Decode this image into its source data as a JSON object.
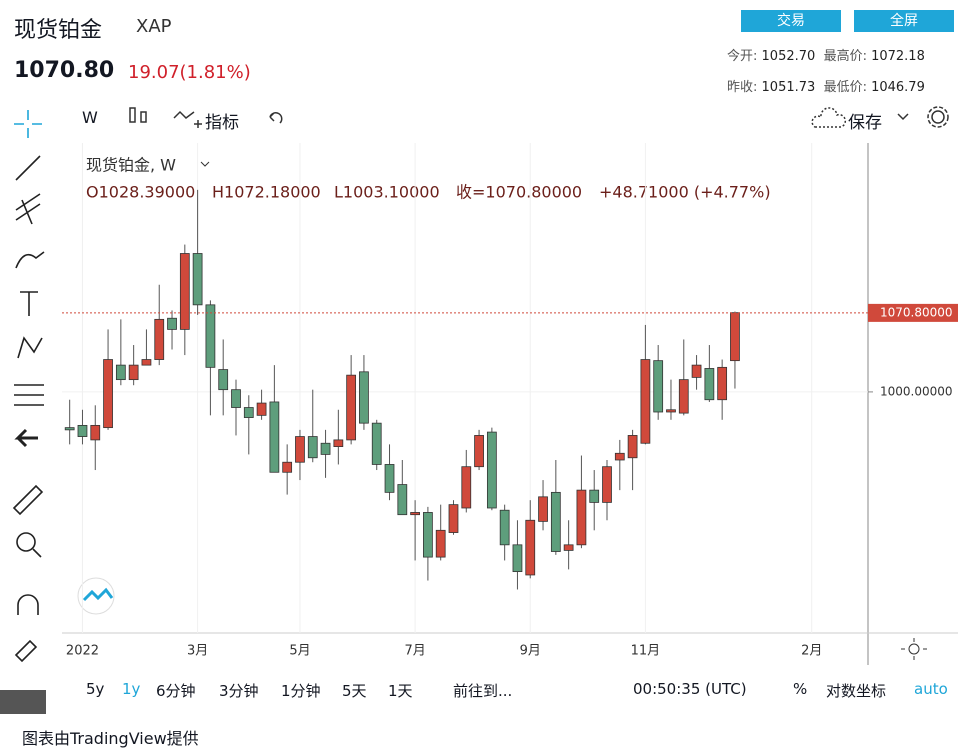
{
  "header": {
    "title": "现货铂金",
    "symbol": "XAP",
    "price": "1070.80",
    "change": "19.07(1.81%)",
    "buttons": [
      "交易",
      "全屏"
    ],
    "stats": [
      [
        "今开:",
        "1052.70"
      ],
      [
        "最高价:",
        "1072.18"
      ],
      [
        "昨收:",
        "1051.73"
      ],
      [
        "最低价:",
        "1046.79"
      ]
    ]
  },
  "toolbar": {
    "interval": "W",
    "indicators": "指标",
    "save": "保存"
  },
  "chart_data": {
    "type": "candlestick",
    "legend_title": "现货铂金, W",
    "ohlc_labels": [
      "O1028.39000",
      "H1072.18000",
      "L1003.10000",
      "收=1070.80000",
      "+48.71000 (+4.77%)"
    ],
    "up_color": "#d0493b",
    "down_color": "#5e9e7c",
    "candles": [
      [
        968,
        993,
        953,
        966
      ],
      [
        970,
        984,
        953,
        960
      ],
      [
        957,
        988,
        930,
        970
      ],
      [
        968,
        1056,
        966,
        1029
      ],
      [
        1024,
        1065,
        1006,
        1011
      ],
      [
        1011,
        1042,
        1006,
        1024
      ],
      [
        1024,
        1056,
        1024,
        1029
      ],
      [
        1029,
        1096,
        1024,
        1065
      ],
      [
        1066,
        1073,
        1038,
        1056
      ],
      [
        1056,
        1132,
        1033,
        1124
      ],
      [
        1124,
        1181,
        1069,
        1078
      ],
      [
        1078,
        1082,
        979,
        1022
      ],
      [
        1020,
        1047,
        979,
        1002
      ],
      [
        1002,
        1011,
        961,
        986
      ],
      [
        986,
        997,
        944,
        977
      ],
      [
        979,
        1002,
        975,
        990
      ],
      [
        991,
        1024,
        928,
        928
      ],
      [
        928,
        953,
        908,
        937
      ],
      [
        937,
        966,
        921,
        960
      ],
      [
        960,
        1002,
        937,
        941
      ],
      [
        954,
        966,
        923,
        944
      ],
      [
        951,
        984,
        935,
        957
      ],
      [
        957,
        1033,
        953,
        1015
      ],
      [
        1018,
        1033,
        966,
        972
      ],
      [
        972,
        975,
        930,
        935
      ],
      [
        935,
        953,
        903,
        910
      ],
      [
        917,
        939,
        890,
        890
      ],
      [
        890,
        903,
        849,
        892
      ],
      [
        892,
        897,
        831,
        852
      ],
      [
        852,
        899,
        849,
        876
      ],
      [
        874,
        903,
        872,
        899
      ],
      [
        896,
        948,
        892,
        933
      ],
      [
        933,
        966,
        930,
        961
      ],
      [
        964,
        968,
        894,
        896
      ],
      [
        894,
        899,
        849,
        863
      ],
      [
        863,
        885,
        823,
        839
      ],
      [
        836,
        903,
        833,
        885
      ],
      [
        884,
        921,
        876,
        906
      ],
      [
        910,
        939,
        854,
        857
      ],
      [
        858,
        885,
        841,
        863
      ],
      [
        863,
        943,
        860,
        912
      ],
      [
        912,
        930,
        876,
        901
      ],
      [
        901,
        939,
        885,
        933
      ],
      [
        939,
        957,
        912,
        945
      ],
      [
        941,
        966,
        912,
        961
      ],
      [
        954,
        1060,
        953,
        1029
      ],
      [
        1028,
        1042,
        975,
        982
      ],
      [
        982,
        1011,
        975,
        984
      ],
      [
        981,
        1047,
        979,
        1011
      ],
      [
        1013,
        1033,
        1002,
        1024
      ],
      [
        1021,
        1042,
        991,
        993
      ],
      [
        993,
        1029,
        975,
        1022
      ],
      [
        1028,
        1072,
        1003,
        1071
      ]
    ],
    "xlim": [
      -0.6,
      62.4
    ],
    "xticks": [
      {
        "value": 1,
        "label": "2022"
      },
      {
        "value": 10,
        "label": "3月"
      },
      {
        "value": 18,
        "label": "5月"
      },
      {
        "value": 27,
        "label": "7月"
      },
      {
        "value": 36,
        "label": "9月"
      },
      {
        "value": 45,
        "label": "11月"
      },
      {
        "value": 58,
        "label": "2月"
      }
    ],
    "ylim": [
      784,
      1223
    ],
    "yticks": [
      {
        "value": 1000,
        "label": "1000.00000"
      }
    ],
    "last_price": {
      "value": 1070.8,
      "label": "1070.80000"
    },
    "grid": true
  },
  "bottom_bar": {
    "ranges": [
      "5y",
      "1y",
      "6分钟",
      "3分钟",
      "1分钟",
      "5天",
      "1天"
    ],
    "goto": "前往到...",
    "time": "00:50:35 (UTC)",
    "options": [
      "%",
      "对数坐标",
      "auto"
    ]
  },
  "footer": "图表由TradingView提供"
}
